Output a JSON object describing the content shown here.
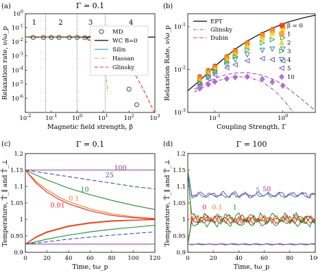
{
  "chart_data": [
    {
      "panel": "(a)",
      "type": "line",
      "title": "Γ = 0.1",
      "xlabel": "Magnetic field strength, β",
      "ylabel": "Relaxation rate, ν/ω_p",
      "xscale": "log",
      "yscale": "log",
      "xlim": [
        0.01,
        1000
      ],
      "ylim": [
        1e-07,
        1
      ],
      "xticks": [
        "10^-2",
        "10^-1",
        "10^0",
        "10^1",
        "10^2",
        "10^3"
      ],
      "yticks": [
        "10^-6",
        "10^-5",
        "10^-4",
        "10^-3",
        "10^-2",
        "10^-1",
        "10^0"
      ],
      "regions": [
        "1",
        "2",
        "3",
        "4"
      ],
      "legend": [
        "MD",
        "WC B=0",
        "Silin",
        "Hassan",
        "Glinsky"
      ],
      "colors": {
        "MD": "#555555",
        "WC B=0": "#000000",
        "Silin": "#2b8cbe",
        "Hassan": "#f08c28",
        "Glinsky": "#e03020"
      },
      "series": [
        {
          "name": "MD",
          "x": [
            0.02,
            0.05,
            0.1,
            0.2,
            0.5,
            1,
            2,
            3,
            5,
            7,
            10,
            15,
            20,
            30,
            50,
            100,
            200
          ],
          "y": [
            0.021,
            0.021,
            0.021,
            0.021,
            0.021,
            0.021,
            0.02,
            0.018,
            0.015,
            0.011,
            0.0062,
            0.0028,
            0.0013,
            0.0004,
            8e-05,
            4.5e-06,
            3.5e-07
          ]
        },
        {
          "name": "WC B=0",
          "x": [
            0.01,
            1000
          ],
          "y": [
            0.022,
            0.022
          ]
        },
        {
          "name": "Silin",
          "x": [
            4,
            6,
            8,
            10,
            15,
            20,
            25,
            30,
            35,
            40
          ],
          "y": [
            0.017,
            0.012,
            0.008,
            0.0055,
            0.0025,
            0.0012,
            0.0006,
            0.0003,
            0.00014,
            6e-05
          ]
        },
        {
          "name": "Hassan",
          "x": [
            0.01,
            0.1,
            1,
            2,
            3,
            5,
            8,
            10,
            13,
            15
          ],
          "y": [
            0.021,
            0.021,
            0.021,
            0.02,
            0.016,
            0.008,
            0.002,
            0.0005,
            5e-05,
            3e-06
          ]
        },
        {
          "name": "Glinsky",
          "x": [
            2,
            5,
            10,
            20,
            30,
            50,
            100,
            200,
            300,
            500,
            800,
            1000
          ],
          "y": [
            0.02,
            0.015,
            0.009,
            0.004,
            0.0022,
            0.0009,
            0.0002,
            3e-05,
            8e-06,
            1.2e-06,
            2e-07,
            7e-08
          ]
        }
      ]
    },
    {
      "panel": "(b)",
      "type": "scatter",
      "xlabel": "Coupling Strength, Γ",
      "ylabel": "Relaxation Rate, ν/ω_p",
      "xscale": "log",
      "yscale": "log",
      "xlim": [
        0.04,
        3
      ],
      "ylim": [
        0.001,
        0.2
      ],
      "xticks": [
        "10^-1",
        "10^0"
      ],
      "yticks": [
        "10^-3",
        "10^-2",
        "10^-1"
      ],
      "legend": [
        "EPT",
        "Glinsky",
        "Dubin",
        "β = 0",
        "1",
        "2",
        "3",
        "4",
        "5",
        "10"
      ],
      "colors": {
        "β = 0": "#e8382b",
        "1": "#f29a1f",
        "2": "#e6d31f",
        "3": "#3aa82e",
        "4": "#2e7dbf",
        "5": "#7a58a8",
        "10": "#a85cc8",
        "theory": "#9c4fb0"
      },
      "lines": [
        {
          "name": "EPT",
          "x": [
            0.04,
            0.06,
            0.1,
            0.2,
            0.3,
            0.5,
            0.8,
            1.2,
            2,
            3
          ],
          "y": [
            0.0032,
            0.0055,
            0.012,
            0.03,
            0.046,
            0.072,
            0.1,
            0.128,
            0.16,
            0.185
          ]
        },
        {
          "name": "Glinsky",
          "x": [
            0.05,
            0.1,
            0.15,
            0.2,
            0.3,
            0.5,
            0.8,
            1.1,
            1.5
          ],
          "y": [
            0.003,
            0.0052,
            0.0063,
            0.0068,
            0.0067,
            0.0052,
            0.003,
            0.0017,
            0.0009
          ]
        },
        {
          "name": "Dubin",
          "x": [
            0.05,
            0.1,
            0.15,
            0.2,
            0.3,
            0.5,
            0.8,
            1.2,
            2,
            3
          ],
          "y": [
            0.0035,
            0.0062,
            0.0077,
            0.0083,
            0.0085,
            0.0074,
            0.0055,
            0.0036,
            0.0019,
            0.0011
          ]
        }
      ],
      "series": [
        {
          "name": "β = 0",
          "marker": "circle",
          "x": [
            0.06,
            0.08,
            0.1,
            0.15,
            0.2,
            0.3,
            0.5,
            0.7,
            1.0
          ],
          "y": [
            0.0068,
            0.0095,
            0.012,
            0.02,
            0.028,
            0.042,
            0.066,
            0.085,
            0.105
          ]
        },
        {
          "name": "1",
          "marker": "square",
          "x": [
            0.06,
            0.08,
            0.1,
            0.15,
            0.2,
            0.3,
            0.5,
            0.7,
            1.0
          ],
          "y": [
            0.0062,
            0.0088,
            0.011,
            0.019,
            0.026,
            0.04,
            0.062,
            0.08,
            0.1
          ]
        },
        {
          "name": "2",
          "marker": "triangle-up",
          "x": [
            0.06,
            0.08,
            0.1,
            0.15,
            0.2,
            0.3,
            0.5,
            0.7,
            1.0
          ],
          "y": [
            0.0055,
            0.008,
            0.0102,
            0.017,
            0.023,
            0.035,
            0.054,
            0.07,
            0.088
          ]
        },
        {
          "name": "3",
          "marker": "triangle-right",
          "x": [
            0.06,
            0.08,
            0.1,
            0.15,
            0.2,
            0.3,
            0.5,
            0.7,
            1.0
          ],
          "y": [
            0.005,
            0.0072,
            0.0092,
            0.015,
            0.02,
            0.029,
            0.042,
            0.05,
            0.055
          ]
        },
        {
          "name": "4",
          "marker": "triangle-down",
          "x": [
            0.06,
            0.08,
            0.1,
            0.15,
            0.2,
            0.3,
            0.5,
            0.7,
            1.0
          ],
          "y": [
            0.0045,
            0.0065,
            0.0085,
            0.013,
            0.017,
            0.022,
            0.028,
            0.03,
            0.03
          ]
        },
        {
          "name": "5",
          "marker": "triangle-left",
          "x": [
            0.06,
            0.08,
            0.1,
            0.15,
            0.2,
            0.3,
            0.5,
            0.7,
            1.0
          ],
          "y": [
            0.0042,
            0.006,
            0.0075,
            0.011,
            0.013,
            0.016,
            0.018,
            0.017,
            0.016
          ]
        },
        {
          "name": "10",
          "marker": "diamond",
          "x": [
            0.06,
            0.08,
            0.1,
            0.15,
            0.2,
            0.3,
            0.5,
            0.7,
            1.0
          ],
          "y": [
            0.0036,
            0.0045,
            0.0052,
            0.0061,
            0.0066,
            0.0068,
            0.006,
            0.0051,
            0.0042
          ]
        }
      ]
    },
    {
      "panel": "(c)",
      "type": "line",
      "title": "Γ = 0.1",
      "xlabel": "Time, tω_p",
      "ylabel": "Temperature, T̄_∥ and T̄_⊥",
      "xlim": [
        0,
        120
      ],
      "ylim": [
        0.9,
        1.2
      ],
      "xticks": [
        0,
        20,
        40,
        60,
        80,
        100,
        120
      ],
      "yticks": [
        0.9,
        0.95,
        1,
        1.05,
        1.1,
        1.15,
        1.2
      ],
      "annotations": [
        {
          "text": "100",
          "x": 88,
          "y": 1.15,
          "color": "#8a3c96"
        },
        {
          "text": "25",
          "x": 78,
          "y": 1.128,
          "color": "#3d4fa3"
        },
        {
          "text": "10",
          "x": 55,
          "y": 1.084,
          "color": "#1f8a2c"
        },
        {
          "text": "0.1",
          "x": 45,
          "y": 1.057,
          "color": "#f07a1c"
        },
        {
          "text": "0.01",
          "x": 30,
          "y": 1.036,
          "color": "#e02020"
        }
      ],
      "series": [
        {
          "name": "100",
          "color": "#8a3c96",
          "dash": false,
          "x": [
            0,
            120
          ],
          "y": [
            1.15,
            1.15
          ]
        },
        {
          "name": "100 perp",
          "color": "#8a3c96",
          "dash": false,
          "x": [
            0,
            120
          ],
          "y": [
            0.925,
            0.925
          ]
        },
        {
          "name": "25",
          "color": "#3d4fa3",
          "dash": true,
          "x": [
            0,
            10,
            20,
            40,
            60,
            80,
            100,
            120
          ],
          "y": [
            1.15,
            1.145,
            1.14,
            1.13,
            1.12,
            1.11,
            1.1,
            1.093
          ]
        },
        {
          "name": "25 perp",
          "color": "#3d4fa3",
          "dash": true,
          "x": [
            0,
            20,
            40,
            60,
            80,
            100,
            120
          ],
          "y": [
            0.925,
            0.932,
            0.94,
            0.946,
            0.952,
            0.957,
            0.962
          ]
        },
        {
          "name": "10",
          "color": "#1f8a2c",
          "dash": false,
          "x": [
            0,
            10,
            20,
            40,
            60,
            80,
            100,
            120
          ],
          "y": [
            1.15,
            1.135,
            1.12,
            1.095,
            1.075,
            1.058,
            1.043,
            1.03
          ]
        },
        {
          "name": "10 perp",
          "color": "#1f8a2c",
          "dash": false,
          "x": [
            0,
            20,
            40,
            60,
            80,
            100,
            120
          ],
          "y": [
            0.925,
            0.94,
            0.952,
            0.962,
            0.97,
            0.976,
            0.982
          ]
        },
        {
          "name": "0.1",
          "color": "#f07a1c",
          "dash": false,
          "x": [
            0,
            10,
            20,
            30,
            40,
            60,
            80,
            100,
            120
          ],
          "y": [
            1.15,
            1.115,
            1.09,
            1.07,
            1.054,
            1.032,
            1.017,
            1.008,
            1.003
          ]
        },
        {
          "name": "0.01",
          "color": "#e02020",
          "dash": false,
          "x": [
            0,
            10,
            20,
            30,
            40,
            60,
            80,
            100,
            120
          ],
          "y": [
            1.15,
            1.11,
            1.083,
            1.063,
            1.047,
            1.026,
            1.012,
            1.005,
            1.001
          ]
        },
        {
          "name": "0.1 perp",
          "color": "#f07a1c",
          "dash": false,
          "x": [
            0,
            10,
            20,
            40,
            60,
            80,
            100,
            120
          ],
          "y": [
            0.925,
            0.945,
            0.96,
            0.978,
            0.988,
            0.994,
            0.997,
            0.999
          ]
        },
        {
          "name": "0.01 perp",
          "color": "#e02020",
          "dash": false,
          "x": [
            0,
            10,
            20,
            40,
            60,
            80,
            100,
            120
          ],
          "y": [
            0.925,
            0.947,
            0.962,
            0.98,
            0.99,
            0.996,
            0.998,
            1.0
          ]
        }
      ]
    },
    {
      "panel": "(d)",
      "type": "line",
      "title": "Γ = 100",
      "xlabel": "Time, tω_p",
      "ylabel": "Temperature, T̄_∥ and T̄_⊥",
      "xlim": [
        0,
        100
      ],
      "ylim": [
        0.9,
        1.2
      ],
      "xticks": [
        0,
        20,
        40,
        60,
        80,
        100
      ],
      "yticks": [
        0.9,
        0.95,
        1,
        1.05,
        1.1,
        1.15,
        1.2
      ],
      "annotations": [
        {
          "text": "50",
          "x": 62,
          "y": 1.085,
          "color": "#8a3c96"
        },
        {
          "text": "5",
          "x": 55,
          "y": 1.082,
          "color": "#2e7dbf"
        },
        {
          "text": "0",
          "x": 13,
          "y": 1.03,
          "color": "#e02020"
        },
        {
          "text": "0.1",
          "x": 23,
          "y": 1.03,
          "color": "#f07a1c"
        },
        {
          "text": "1",
          "x": 37,
          "y": 1.03,
          "color": "#1f8a2c"
        }
      ],
      "series": [
        {
          "name": "50",
          "color": "#8a3c96",
          "base": 1.075,
          "start": 1.15,
          "amp": 0.006,
          "seed": 1
        },
        {
          "name": "5",
          "color": "#2e7dbf",
          "base": 1.073,
          "start": 1.15,
          "amp": 0.005,
          "seed": 2
        },
        {
          "name": "0",
          "color": "#e02020",
          "base": 1.0,
          "start": 1.15,
          "amp": 0.008,
          "seed": 3
        },
        {
          "name": "0.1",
          "color": "#f07a1c",
          "base": 1.002,
          "start": 1.15,
          "amp": 0.008,
          "seed": 4
        },
        {
          "name": "1",
          "color": "#1f8a2c",
          "base": 1.005,
          "start": 1.15,
          "amp": 0.01,
          "seed": 5
        },
        {
          "name": "0 perp",
          "color": "#e02020",
          "base": 0.998,
          "start": 0.925,
          "amp": 0.007,
          "seed": 6
        },
        {
          "name": "1 perp",
          "color": "#1f8a2c",
          "base": 0.99,
          "start": 0.925,
          "amp": 0.008,
          "seed": 7
        },
        {
          "name": "5 perp",
          "color": "#2e7dbf",
          "base": 0.925,
          "start": 0.925,
          "amp": 0.001,
          "seed": 8
        },
        {
          "name": "50 perp",
          "color": "#8a3c96",
          "base": 0.924,
          "start": 0.925,
          "amp": 0.001,
          "seed": 9
        }
      ]
    }
  ]
}
